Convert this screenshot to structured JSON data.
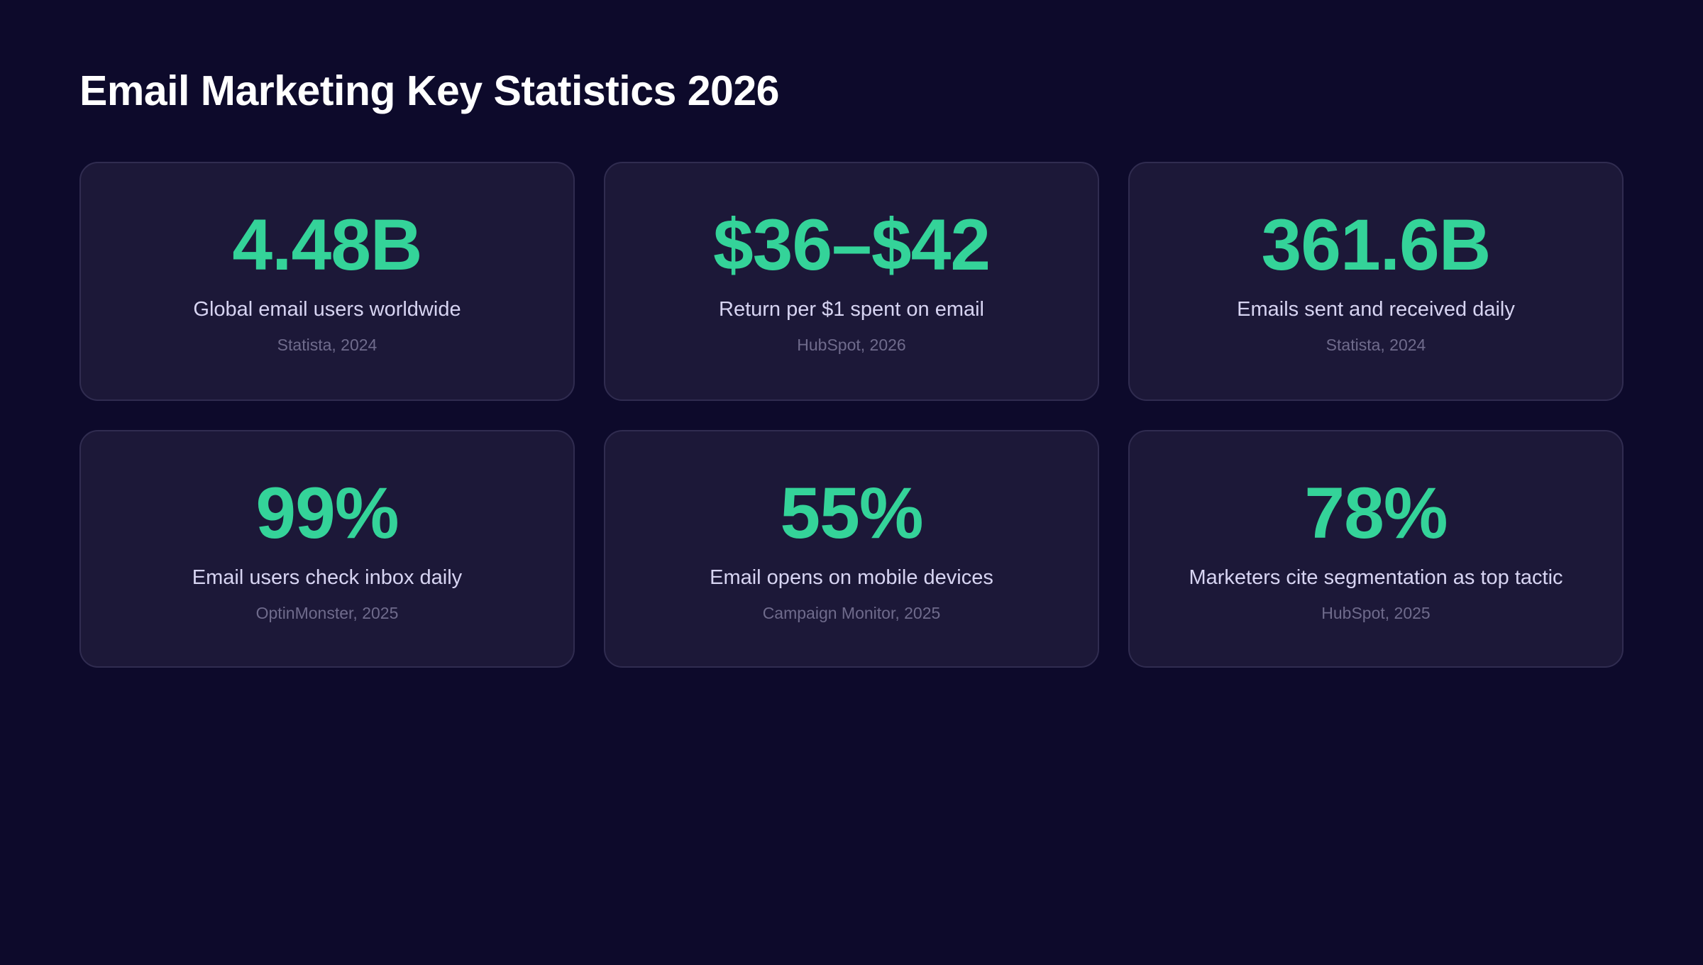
{
  "title": "Email Marketing Key Statistics 2026",
  "accent_color": "#34d399",
  "background_color": "#0d0a2b",
  "card_color": "#1c1838",
  "stats": [
    {
      "value": "4.48B",
      "label": "Global email users worldwide",
      "source": "Statista, 2024"
    },
    {
      "value": "$36–$42",
      "label": "Return per $1 spent on email",
      "source": "HubSpot, 2026"
    },
    {
      "value": "361.6B",
      "label": "Emails sent and received daily",
      "source": "Statista, 2024"
    },
    {
      "value": "99%",
      "label": "Email users check inbox daily",
      "source": "OptinMonster, 2025"
    },
    {
      "value": "55%",
      "label": "Email opens on mobile devices",
      "source": "Campaign Monitor, 2025"
    },
    {
      "value": "78%",
      "label": "Marketers cite segmentation as top tactic",
      "source": "HubSpot, 2025"
    }
  ]
}
